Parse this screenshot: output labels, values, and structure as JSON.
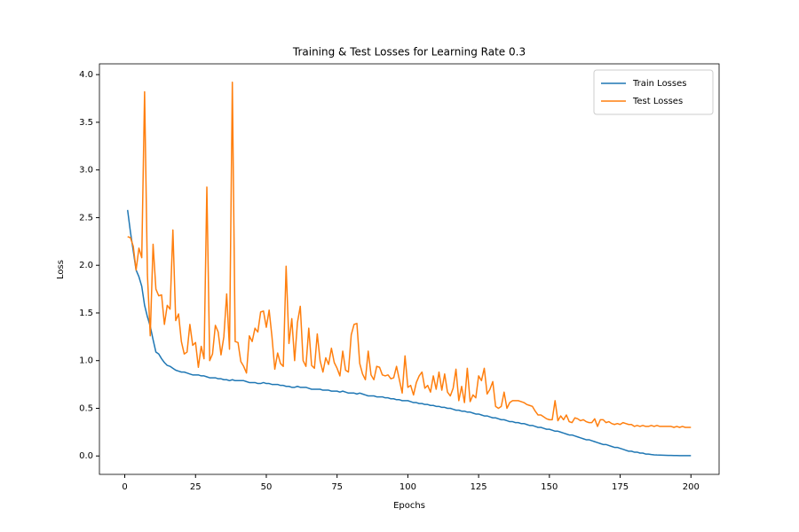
{
  "chart_data": {
    "type": "line",
    "title": "Training & Test Losses for Learning Rate 0.3",
    "x_label": "Epochs",
    "y_label": "Loss",
    "x": [
      1,
      2,
      3,
      4,
      5,
      6,
      7,
      8,
      9,
      10,
      11,
      12,
      13,
      14,
      15,
      16,
      17,
      18,
      19,
      20,
      21,
      22,
      23,
      24,
      25,
      26,
      27,
      28,
      29,
      30,
      31,
      32,
      33,
      34,
      35,
      36,
      37,
      38,
      39,
      40,
      41,
      42,
      43,
      44,
      45,
      46,
      47,
      48,
      49,
      50,
      51,
      52,
      53,
      54,
      55,
      56,
      57,
      58,
      59,
      60,
      61,
      62,
      63,
      64,
      65,
      66,
      67,
      68,
      69,
      70,
      71,
      72,
      73,
      74,
      75,
      76,
      77,
      78,
      79,
      80,
      81,
      82,
      83,
      84,
      85,
      86,
      87,
      88,
      89,
      90,
      91,
      92,
      93,
      94,
      95,
      96,
      97,
      98,
      99,
      100,
      101,
      102,
      103,
      104,
      105,
      106,
      107,
      108,
      109,
      110,
      111,
      112,
      113,
      114,
      115,
      116,
      117,
      118,
      119,
      120,
      121,
      122,
      123,
      124,
      125,
      126,
      127,
      128,
      129,
      130,
      131,
      132,
      133,
      134,
      135,
      136,
      137,
      138,
      139,
      140,
      141,
      142,
      143,
      144,
      145,
      146,
      147,
      148,
      149,
      150,
      151,
      152,
      153,
      154,
      155,
      156,
      157,
      158,
      159,
      160,
      161,
      162,
      163,
      164,
      165,
      166,
      167,
      168,
      169,
      170,
      171,
      172,
      173,
      174,
      175,
      176,
      177,
      178,
      179,
      180,
      181,
      182,
      183,
      184,
      185,
      186,
      187,
      188,
      189,
      190,
      191,
      192,
      193,
      194,
      195,
      196,
      197,
      198,
      199,
      200
    ],
    "series": [
      {
        "name": "Train Losses",
        "color": "#1f77b4",
        "values": [
          2.58,
          2.35,
          2.15,
          1.95,
          1.88,
          1.78,
          1.58,
          1.46,
          1.36,
          1.22,
          1.09,
          1.07,
          1.02,
          0.98,
          0.95,
          0.94,
          0.92,
          0.9,
          0.89,
          0.88,
          0.88,
          0.87,
          0.86,
          0.85,
          0.85,
          0.85,
          0.84,
          0.84,
          0.83,
          0.82,
          0.82,
          0.82,
          0.81,
          0.81,
          0.8,
          0.8,
          0.79,
          0.8,
          0.79,
          0.79,
          0.79,
          0.79,
          0.78,
          0.77,
          0.77,
          0.77,
          0.76,
          0.76,
          0.77,
          0.76,
          0.76,
          0.75,
          0.75,
          0.75,
          0.74,
          0.74,
          0.73,
          0.73,
          0.72,
          0.72,
          0.73,
          0.72,
          0.72,
          0.72,
          0.71,
          0.7,
          0.7,
          0.7,
          0.7,
          0.69,
          0.69,
          0.69,
          0.68,
          0.68,
          0.68,
          0.67,
          0.68,
          0.67,
          0.66,
          0.66,
          0.66,
          0.65,
          0.66,
          0.65,
          0.64,
          0.63,
          0.63,
          0.63,
          0.62,
          0.62,
          0.62,
          0.61,
          0.61,
          0.6,
          0.6,
          0.59,
          0.59,
          0.58,
          0.58,
          0.58,
          0.57,
          0.56,
          0.56,
          0.55,
          0.55,
          0.54,
          0.54,
          0.53,
          0.53,
          0.52,
          0.52,
          0.51,
          0.51,
          0.5,
          0.5,
          0.49,
          0.48,
          0.48,
          0.47,
          0.47,
          0.46,
          0.46,
          0.45,
          0.44,
          0.44,
          0.43,
          0.42,
          0.42,
          0.41,
          0.4,
          0.4,
          0.39,
          0.38,
          0.38,
          0.37,
          0.36,
          0.36,
          0.35,
          0.35,
          0.34,
          0.34,
          0.33,
          0.32,
          0.32,
          0.31,
          0.3,
          0.3,
          0.29,
          0.28,
          0.28,
          0.27,
          0.26,
          0.26,
          0.25,
          0.24,
          0.23,
          0.22,
          0.22,
          0.21,
          0.2,
          0.19,
          0.18,
          0.17,
          0.17,
          0.16,
          0.15,
          0.14,
          0.13,
          0.12,
          0.12,
          0.11,
          0.1,
          0.09,
          0.09,
          0.08,
          0.07,
          0.06,
          0.05,
          0.05,
          0.04,
          0.04,
          0.03,
          0.03,
          0.02,
          0.02,
          0.015,
          0.012,
          0.01,
          0.009,
          0.008,
          0.007,
          0.006,
          0.006,
          0.005,
          0.005,
          0.004,
          0.004,
          0.004,
          0.003,
          0.003
        ]
      },
      {
        "name": "Test Losses",
        "color": "#ff7f0e",
        "values": [
          2.3,
          2.29,
          2.2,
          1.95,
          2.18,
          2.08,
          3.82,
          1.9,
          1.26,
          2.22,
          1.75,
          1.68,
          1.69,
          1.38,
          1.58,
          1.54,
          2.37,
          1.42,
          1.49,
          1.2,
          1.07,
          1.09,
          1.38,
          1.16,
          1.19,
          0.93,
          1.15,
          1.02,
          2.82,
          1.0,
          1.07,
          1.37,
          1.3,
          1.06,
          1.25,
          1.7,
          1.12,
          3.92,
          1.2,
          1.19,
          0.99,
          0.94,
          0.87,
          1.26,
          1.2,
          1.34,
          1.3,
          1.51,
          1.52,
          1.35,
          1.53,
          1.25,
          0.91,
          1.08,
          0.97,
          0.94,
          1.99,
          1.18,
          1.44,
          1.0,
          1.4,
          1.57,
          1.0,
          0.94,
          1.34,
          0.95,
          0.92,
          1.28,
          1.0,
          0.88,
          1.03,
          0.96,
          1.13,
          0.98,
          0.92,
          0.84,
          1.1,
          0.9,
          0.88,
          1.27,
          1.38,
          1.39,
          0.97,
          0.86,
          0.8,
          1.1,
          0.85,
          0.8,
          0.94,
          0.93,
          0.85,
          0.84,
          0.85,
          0.81,
          0.82,
          0.94,
          0.8,
          0.66,
          1.05,
          0.72,
          0.74,
          0.64,
          0.77,
          0.84,
          0.88,
          0.71,
          0.74,
          0.67,
          0.84,
          0.7,
          0.88,
          0.69,
          0.86,
          0.67,
          0.63,
          0.71,
          0.91,
          0.58,
          0.73,
          0.56,
          0.92,
          0.57,
          0.64,
          0.61,
          0.84,
          0.79,
          0.92,
          0.65,
          0.7,
          0.78,
          0.52,
          0.5,
          0.52,
          0.67,
          0.5,
          0.56,
          0.58,
          0.58,
          0.58,
          0.57,
          0.56,
          0.54,
          0.53,
          0.52,
          0.47,
          0.43,
          0.43,
          0.41,
          0.39,
          0.38,
          0.38,
          0.58,
          0.37,
          0.42,
          0.38,
          0.43,
          0.36,
          0.35,
          0.4,
          0.39,
          0.37,
          0.38,
          0.36,
          0.35,
          0.35,
          0.39,
          0.31,
          0.38,
          0.38,
          0.35,
          0.36,
          0.34,
          0.33,
          0.34,
          0.33,
          0.35,
          0.34,
          0.33,
          0.33,
          0.31,
          0.32,
          0.31,
          0.32,
          0.31,
          0.31,
          0.32,
          0.31,
          0.32,
          0.31,
          0.31,
          0.31,
          0.31,
          0.31,
          0.3,
          0.31,
          0.3,
          0.31,
          0.3,
          0.3,
          0.3
        ]
      }
    ],
    "xlim": [
      -8.95,
      209.95
    ],
    "ylim": [
      -0.193,
      4.113
    ],
    "xticks": [
      0,
      25,
      50,
      75,
      100,
      125,
      150,
      175,
      200
    ],
    "yticks": [
      {
        "value": 0,
        "label": "0.0"
      },
      0.5,
      {
        "value": 1,
        "label": "1.0"
      },
      1.5,
      {
        "value": 2,
        "label": "2.0"
      },
      2.5,
      {
        "value": 3,
        "label": "3.0"
      },
      3.5,
      {
        "value": 4,
        "label": "4.0"
      }
    ],
    "grid": false,
    "legend": "upper right"
  }
}
